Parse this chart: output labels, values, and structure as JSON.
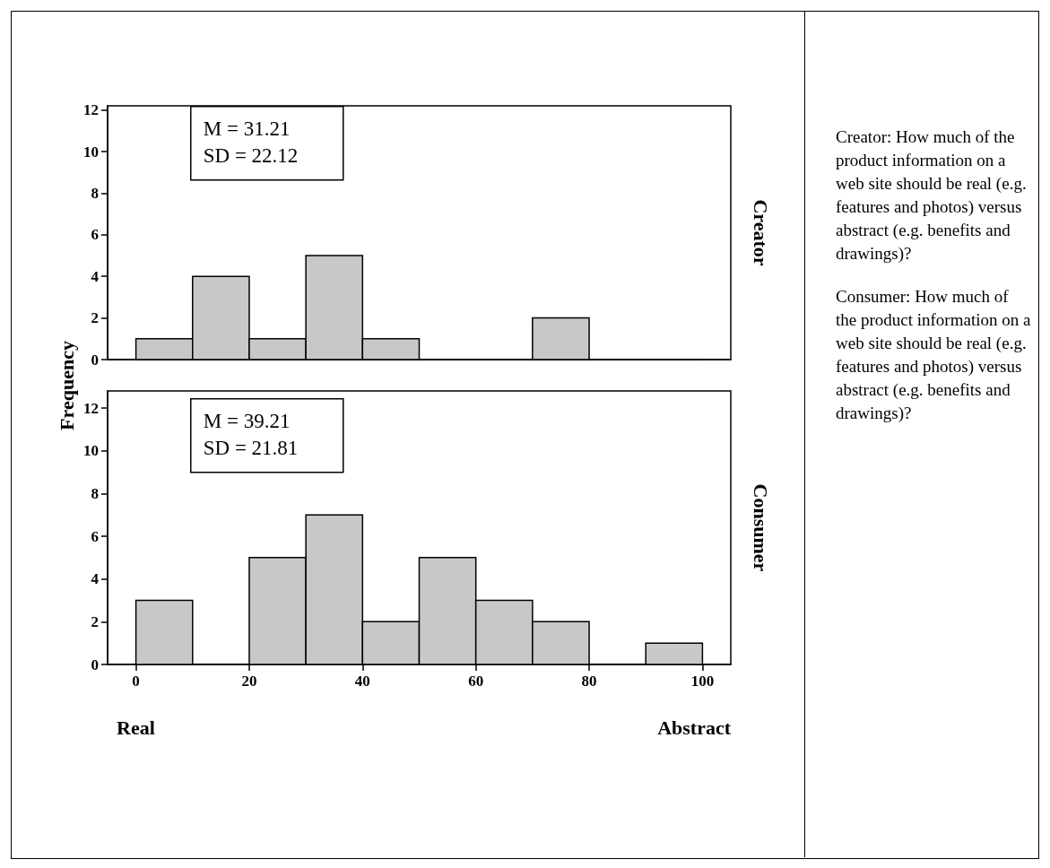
{
  "chart_data": [
    {
      "type": "histogram",
      "y2label": "Creator",
      "ylabel": "Frequency",
      "bins": [
        0,
        10,
        20,
        30,
        40,
        50,
        60,
        70,
        80,
        90,
        100
      ],
      "values": [
        1,
        4,
        1,
        5,
        1,
        0,
        0,
        2,
        0,
        0
      ],
      "color": "#c8c8c8",
      "xlim": [
        -5,
        105
      ],
      "ylim": [
        0,
        12.2
      ],
      "yticks": [
        0,
        2,
        4,
        6,
        8,
        10,
        12
      ],
      "grid": false,
      "tick_labels": "y",
      "annotations": [
        "M = 31.21",
        "SD = 22.12"
      ]
    },
    {
      "type": "histogram",
      "y2label": "Consumer",
      "bins": [
        0,
        10,
        20,
        30,
        40,
        50,
        60,
        70,
        80,
        90,
        100
      ],
      "values": [
        3,
        0,
        5,
        7,
        2,
        5,
        3,
        2,
        0,
        1
      ],
      "color": "#c8c8c8",
      "xlim": [
        -5,
        105
      ],
      "xticks": [
        0,
        20,
        40,
        60,
        80,
        100
      ],
      "ylim": [
        0,
        12.8
      ],
      "yticks": [
        0,
        2,
        4,
        6,
        8,
        10,
        12
      ],
      "grid": false,
      "annotations": [
        "M = 39.21",
        "SD = 21.81",
        "Real",
        "Abstract"
      ]
    },
    {
      "type": "other",
      "annotations": [
        "Creator: How much of the product information on a web site should be real (e.g. features and photos) versus abstract (e.g. benefits and drawings)?",
        "Consumer: How much of the product information on a web site should be real (e.g. features and photos) versus abstract (e.g. benefits and drawings)?"
      ]
    }
  ]
}
